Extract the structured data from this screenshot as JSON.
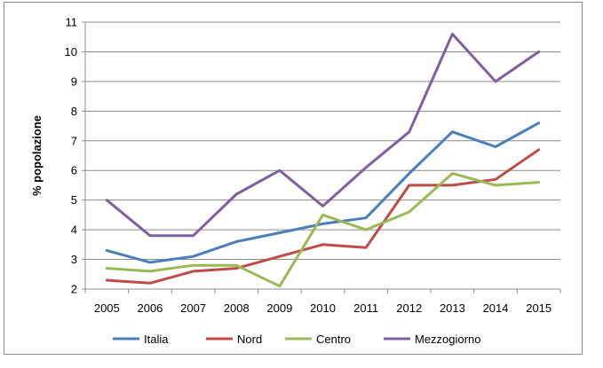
{
  "chart_data": {
    "type": "line",
    "x": [
      2005,
      2006,
      2007,
      2008,
      2009,
      2010,
      2011,
      2012,
      2013,
      2014,
      2015
    ],
    "x_tick_labels": [
      "2005",
      "2006",
      "2007",
      "2008",
      "2009",
      "2010",
      "2011",
      "2012",
      "2013",
      "2014",
      "2015"
    ],
    "ylabel": "% popolazione",
    "xlabel": "",
    "title": "",
    "ylim": [
      2,
      11
    ],
    "y_ticks": [
      2,
      3,
      4,
      5,
      6,
      7,
      8,
      9,
      10,
      11
    ],
    "y_tick_labels": [
      "2",
      "3",
      "4",
      "5",
      "6",
      "7",
      "8",
      "9",
      "10",
      "11"
    ],
    "grid": "horizontal",
    "legend_position": "bottom",
    "series": [
      {
        "name": "Italia",
        "color": "#4a7ebb",
        "values": [
          3.3,
          2.9,
          3.1,
          3.6,
          3.9,
          4.2,
          4.4,
          5.9,
          7.3,
          6.8,
          7.6
        ]
      },
      {
        "name": "Nord",
        "color": "#be4b48",
        "values": [
          2.3,
          2.2,
          2.6,
          2.7,
          3.1,
          3.5,
          3.4,
          5.5,
          5.5,
          5.7,
          6.7
        ]
      },
      {
        "name": "Centro",
        "color": "#98b954",
        "values": [
          2.7,
          2.6,
          2.8,
          2.8,
          2.1,
          4.5,
          4.0,
          4.6,
          5.9,
          5.5,
          5.6
        ]
      },
      {
        "name": "Mezzogiorno",
        "color": "#7d60a0",
        "values": [
          5.0,
          3.8,
          3.8,
          5.2,
          6.0,
          4.8,
          6.1,
          7.3,
          10.6,
          9.0,
          10.0
        ]
      }
    ]
  }
}
